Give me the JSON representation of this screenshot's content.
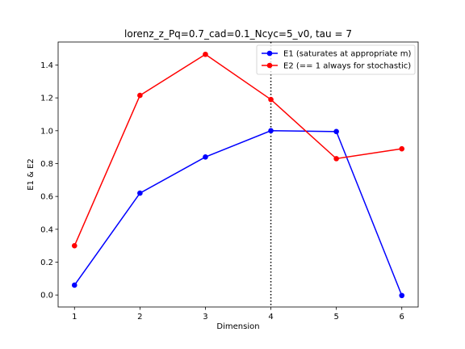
{
  "chart_data": {
    "type": "line",
    "title": "lorenz_z_Pq=0.7_cad=0.1_Ncyc=5_v0, tau = 7",
    "xlabel": "Dimension",
    "ylabel": "E1 & E2",
    "x": [
      1,
      2,
      3,
      4,
      5,
      6
    ],
    "xlim": [
      0.75,
      6.25
    ],
    "ylim": [
      -0.073,
      1.54
    ],
    "xticks": [
      1,
      2,
      3,
      4,
      5,
      6
    ],
    "yticks": [
      0.0,
      0.2,
      0.4,
      0.6,
      0.8,
      1.0,
      1.2,
      1.4
    ],
    "ytick_labels": [
      "0.0",
      "0.2",
      "0.4",
      "0.6",
      "0.8",
      "1.0",
      "1.2",
      "1.4"
    ],
    "grid": false,
    "legend_position": "top-right",
    "vline": {
      "x": 4,
      "style": "dotted",
      "color": "#000000"
    },
    "series": [
      {
        "name": "E1 (saturates at appropriate m)",
        "color": "#0000ff",
        "values": [
          0.06,
          0.62,
          0.84,
          1.0,
          0.995,
          -0.003
        ]
      },
      {
        "name": "E2 (== 1 always for stochastic)",
        "color": "#ff0000",
        "values": [
          0.3,
          1.215,
          1.465,
          1.19,
          0.83,
          0.89
        ]
      }
    ]
  }
}
